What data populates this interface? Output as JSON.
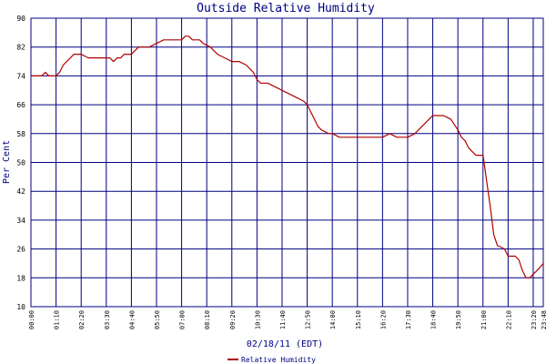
{
  "chart_data": {
    "type": "line",
    "title": "Outside Relative Humidity",
    "xlabel": "02/18/11 (EDT)",
    "ylabel": "Per Cent",
    "ylim": [
      10,
      90
    ],
    "yticks": [
      10,
      18,
      26,
      34,
      42,
      50,
      58,
      66,
      74,
      82,
      90
    ],
    "xlim": [
      "00:00",
      "23:48"
    ],
    "xticks": [
      "00:00",
      "01:10",
      "02:20",
      "03:30",
      "04:40",
      "05:50",
      "07:00",
      "08:10",
      "09:20",
      "10:30",
      "11:40",
      "12:50",
      "14:00",
      "15:10",
      "16:20",
      "17:30",
      "18:40",
      "19:50",
      "21:00",
      "22:10",
      "23:20",
      "23:48"
    ],
    "grid": true,
    "legend": "bottom-center",
    "series": [
      {
        "name": "Relative Humidity",
        "color": "#b00000",
        "points": [
          [
            "00:00",
            74
          ],
          [
            "00:30",
            74
          ],
          [
            "00:40",
            75
          ],
          [
            "00:50",
            74
          ],
          [
            "01:10",
            74
          ],
          [
            "01:20",
            75
          ],
          [
            "01:30",
            77
          ],
          [
            "01:50",
            79
          ],
          [
            "02:00",
            80
          ],
          [
            "02:20",
            80
          ],
          [
            "02:40",
            79
          ],
          [
            "03:00",
            79
          ],
          [
            "03:20",
            79
          ],
          [
            "03:40",
            79
          ],
          [
            "03:50",
            78
          ],
          [
            "04:00",
            79
          ],
          [
            "04:10",
            79
          ],
          [
            "04:20",
            80
          ],
          [
            "04:40",
            80
          ],
          [
            "04:50",
            81
          ],
          [
            "05:00",
            82
          ],
          [
            "05:30",
            82
          ],
          [
            "05:50",
            83
          ],
          [
            "06:10",
            84
          ],
          [
            "06:40",
            84
          ],
          [
            "07:00",
            84
          ],
          [
            "07:10",
            85
          ],
          [
            "07:20",
            85
          ],
          [
            "07:30",
            84
          ],
          [
            "07:50",
            84
          ],
          [
            "08:00",
            83
          ],
          [
            "08:20",
            82
          ],
          [
            "08:40",
            80
          ],
          [
            "09:00",
            79
          ],
          [
            "09:20",
            78
          ],
          [
            "09:40",
            78
          ],
          [
            "10:00",
            77
          ],
          [
            "10:20",
            75
          ],
          [
            "10:30",
            73
          ],
          [
            "10:40",
            72
          ],
          [
            "11:00",
            72
          ],
          [
            "11:20",
            71
          ],
          [
            "11:40",
            70
          ],
          [
            "12:00",
            69
          ],
          [
            "12:20",
            68
          ],
          [
            "12:40",
            67
          ],
          [
            "12:50",
            66
          ],
          [
            "13:00",
            64
          ],
          [
            "13:10",
            62
          ],
          [
            "13:20",
            60
          ],
          [
            "13:30",
            59
          ],
          [
            "13:50",
            58
          ],
          [
            "14:00",
            58
          ],
          [
            "14:20",
            57
          ],
          [
            "14:40",
            57
          ],
          [
            "15:00",
            57
          ],
          [
            "15:10",
            57
          ],
          [
            "15:30",
            57
          ],
          [
            "15:50",
            57
          ],
          [
            "16:10",
            57
          ],
          [
            "16:20",
            57
          ],
          [
            "16:40",
            58
          ],
          [
            "17:00",
            57
          ],
          [
            "17:30",
            57
          ],
          [
            "17:50",
            58
          ],
          [
            "18:10",
            60
          ],
          [
            "18:30",
            62
          ],
          [
            "18:40",
            63
          ],
          [
            "18:50",
            63
          ],
          [
            "19:10",
            63
          ],
          [
            "19:30",
            62
          ],
          [
            "19:50",
            59
          ],
          [
            "20:00",
            57
          ],
          [
            "20:10",
            56
          ],
          [
            "20:20",
            54
          ],
          [
            "20:40",
            52
          ],
          [
            "21:00",
            52
          ],
          [
            "21:10",
            45
          ],
          [
            "21:20",
            38
          ],
          [
            "21:30",
            30
          ],
          [
            "21:40",
            27
          ],
          [
            "22:00",
            26
          ],
          [
            "22:10",
            24
          ],
          [
            "22:20",
            24
          ],
          [
            "22:30",
            24
          ],
          [
            "22:40",
            23
          ],
          [
            "22:50",
            20
          ],
          [
            "23:00",
            18
          ],
          [
            "23:10",
            18
          ],
          [
            "23:20",
            19
          ],
          [
            "23:30",
            20
          ],
          [
            "23:40",
            21
          ],
          [
            "23:48",
            22
          ]
        ]
      }
    ]
  }
}
